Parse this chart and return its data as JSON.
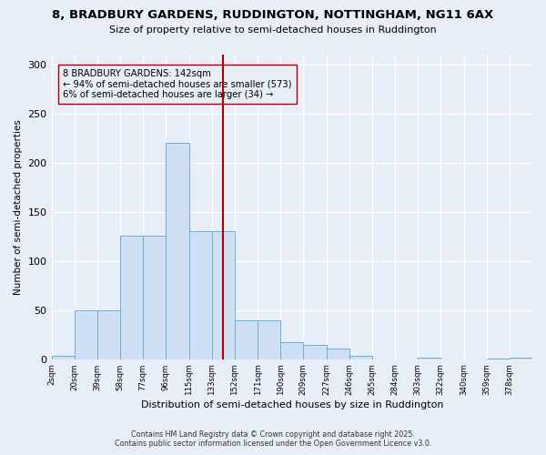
{
  "title_line1": "8, BRADBURY GARDENS, RUDDINGTON, NOTTINGHAM, NG11 6AX",
  "title_line2": "Size of property relative to semi-detached houses in Ruddington",
  "xlabel": "Distribution of semi-detached houses by size in Ruddington",
  "ylabel": "Number of semi-detached properties",
  "bin_labels": [
    "2sqm",
    "20sqm",
    "39sqm",
    "58sqm",
    "77sqm",
    "96sqm",
    "115sqm",
    "133sqm",
    "152sqm",
    "171sqm",
    "190sqm",
    "209sqm",
    "227sqm",
    "246sqm",
    "265sqm",
    "284sqm",
    "303sqm",
    "322sqm",
    "340sqm",
    "359sqm",
    "378sqm"
  ],
  "bar_heights": [
    3,
    50,
    50,
    126,
    126,
    220,
    130,
    130,
    40,
    40,
    17,
    15,
    11,
    3,
    0,
    0,
    2,
    0,
    0,
    1,
    2
  ],
  "bar_color": "#cfe0f5",
  "bar_edge_color": "#6aaed6",
  "property_size_bin": 7,
  "vline_color": "#aa0000",
  "annotation_box_edge": "#aa0000",
  "annotation_text_line1": "8 BRADBURY GARDENS: 142sqm",
  "annotation_text_line2": "← 94% of semi-detached houses are smaller (573)",
  "annotation_text_line3": "6% of semi-detached houses are larger (34) →",
  "ylim": [
    0,
    310
  ],
  "yticks": [
    0,
    50,
    100,
    150,
    200,
    250,
    300
  ],
  "num_bins": 21,
  "footer_line1": "Contains HM Land Registry data © Crown copyright and database right 2025.",
  "footer_line2": "Contains public sector information licensed under the Open Government Licence v3.0.",
  "background_color": "#e8eef8",
  "grid_color": "#ffffff",
  "vline_x_bin": 7.5
}
